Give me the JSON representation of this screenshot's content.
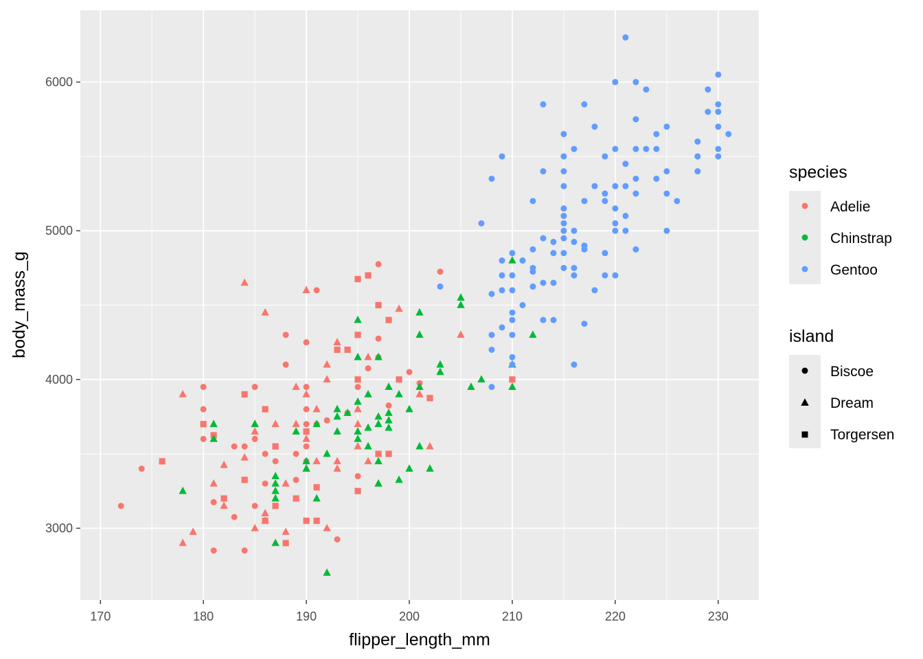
{
  "chart_data": {
    "type": "scatter",
    "xlabel": "flipper_length_mm",
    "ylabel": "body_mass_g",
    "xlim": [
      168.05,
      233.95
    ],
    "ylim": [
      2517.5,
      6482.5
    ],
    "x_ticks": [
      170,
      180,
      190,
      200,
      210,
      220,
      230
    ],
    "y_ticks": [
      3000,
      4000,
      5000,
      6000
    ],
    "grid": true,
    "panel_background": "#EBEBEB",
    "legends": [
      {
        "title": "species",
        "entries": [
          {
            "label": "Adelie",
            "color": "#F8766D"
          },
          {
            "label": "Chinstrap",
            "color": "#00BA38"
          },
          {
            "label": "Gentoo",
            "color": "#619CFF"
          }
        ]
      },
      {
        "title": "island",
        "entries": [
          {
            "label": "Biscoe",
            "shape": "circle"
          },
          {
            "label": "Dream",
            "shape": "triangle"
          },
          {
            "label": "Torgersen",
            "shape": "square"
          }
        ]
      }
    ],
    "series": [
      {
        "species": "Adelie",
        "island": "Biscoe",
        "points": [
          [
            172,
            3150
          ],
          [
            174,
            3400
          ],
          [
            180,
            3950
          ],
          [
            180,
            3800
          ],
          [
            180,
            3600
          ],
          [
            181,
            2850
          ],
          [
            181,
            3175
          ],
          [
            182,
            3200
          ],
          [
            183,
            3550
          ],
          [
            183,
            3075
          ],
          [
            184,
            3550
          ],
          [
            184,
            2850
          ],
          [
            185,
            3950
          ],
          [
            185,
            3600
          ],
          [
            185,
            3150
          ],
          [
            186,
            3500
          ],
          [
            186,
            3300
          ],
          [
            187,
            3450
          ],
          [
            188,
            4300
          ],
          [
            188,
            4100
          ],
          [
            189,
            3500
          ],
          [
            189,
            3325
          ],
          [
            190,
            4250
          ],
          [
            190,
            3950
          ],
          [
            190,
            3800
          ],
          [
            190,
            3700
          ],
          [
            190,
            3550
          ],
          [
            190,
            3450
          ],
          [
            191,
            4600
          ],
          [
            191,
            3700
          ],
          [
            192,
            3725
          ],
          [
            193,
            2925
          ],
          [
            194,
            3775
          ],
          [
            195,
            3950
          ],
          [
            195,
            3350
          ],
          [
            196,
            4075
          ],
          [
            197,
            4775
          ],
          [
            197,
            4275
          ],
          [
            197,
            4150
          ],
          [
            198,
            3825
          ],
          [
            200,
            4050
          ],
          [
            201,
            3975
          ],
          [
            203,
            4725
          ]
        ]
      },
      {
        "species": "Adelie",
        "island": "Dream",
        "points": [
          [
            178,
            3900
          ],
          [
            178,
            2900
          ],
          [
            179,
            2975
          ],
          [
            181,
            3300
          ],
          [
            182,
            3425
          ],
          [
            182,
            3150
          ],
          [
            184,
            4650
          ],
          [
            184,
            3475
          ],
          [
            185,
            3650
          ],
          [
            185,
            3700
          ],
          [
            185,
            3000
          ],
          [
            186,
            4450
          ],
          [
            186,
            3100
          ],
          [
            186,
            3050
          ],
          [
            187,
            3700
          ],
          [
            187,
            2900
          ],
          [
            188,
            3300
          ],
          [
            188,
            2975
          ],
          [
            189,
            3950
          ],
          [
            189,
            3700
          ],
          [
            190,
            4600
          ],
          [
            190,
            3900
          ],
          [
            190,
            3600
          ],
          [
            190,
            3400
          ],
          [
            191,
            3800
          ],
          [
            191,
            3450
          ],
          [
            192,
            4100
          ],
          [
            192,
            4000
          ],
          [
            192,
            3000
          ],
          [
            193,
            4250
          ],
          [
            193,
            3450
          ],
          [
            193,
            3400
          ],
          [
            195,
            3800
          ],
          [
            195,
            3700
          ],
          [
            195,
            3550
          ],
          [
            196,
            4150
          ],
          [
            196,
            3450
          ],
          [
            197,
            3300
          ],
          [
            199,
            4475
          ],
          [
            201,
            3900
          ],
          [
            202,
            3550
          ],
          [
            205,
            4300
          ]
        ]
      },
      {
        "species": "Adelie",
        "island": "Torgersen",
        "points": [
          [
            176,
            3450
          ],
          [
            180,
            3700
          ],
          [
            181,
            3625
          ],
          [
            182,
            3200
          ],
          [
            184,
            3900
          ],
          [
            184,
            3325
          ],
          [
            186,
            3800
          ],
          [
            186,
            3050
          ],
          [
            187,
            3550
          ],
          [
            187,
            3150
          ],
          [
            188,
            2900
          ],
          [
            189,
            3200
          ],
          [
            190,
            3650
          ],
          [
            190,
            3050
          ],
          [
            191,
            3275
          ],
          [
            191,
            3050
          ],
          [
            193,
            4200
          ],
          [
            194,
            4200
          ],
          [
            195,
            4675
          ],
          [
            195,
            4300
          ],
          [
            195,
            4000
          ],
          [
            195,
            3250
          ],
          [
            196,
            4700
          ],
          [
            197,
            4500
          ],
          [
            197,
            3500
          ],
          [
            198,
            4400
          ],
          [
            198,
            3500
          ],
          [
            199,
            4000
          ],
          [
            202,
            3875
          ],
          [
            210,
            4000
          ]
        ]
      },
      {
        "species": "Chinstrap",
        "island": "Dream",
        "points": [
          [
            178,
            3250
          ],
          [
            181,
            3700
          ],
          [
            181,
            3600
          ],
          [
            185,
            3700
          ],
          [
            187,
            3350
          ],
          [
            187,
            3300
          ],
          [
            187,
            3250
          ],
          [
            187,
            3200
          ],
          [
            187,
            2900
          ],
          [
            189,
            3650
          ],
          [
            190,
            3450
          ],
          [
            190,
            3400
          ],
          [
            191,
            3700
          ],
          [
            191,
            3200
          ],
          [
            192,
            3500
          ],
          [
            192,
            2700
          ],
          [
            193,
            3800
          ],
          [
            193,
            3650
          ],
          [
            193,
            3750
          ],
          [
            194,
            3775
          ],
          [
            195,
            4400
          ],
          [
            195,
            4150
          ],
          [
            195,
            3850
          ],
          [
            195,
            3650
          ],
          [
            195,
            3600
          ],
          [
            196,
            3900
          ],
          [
            196,
            3675
          ],
          [
            196,
            3550
          ],
          [
            197,
            4150
          ],
          [
            197,
            3750
          ],
          [
            197,
            3700
          ],
          [
            197,
            3450
          ],
          [
            197,
            3300
          ],
          [
            198,
            3950
          ],
          [
            198,
            3775
          ],
          [
            198,
            3725
          ],
          [
            198,
            3675
          ],
          [
            199,
            3900
          ],
          [
            199,
            3325
          ],
          [
            200,
            3800
          ],
          [
            200,
            3400
          ],
          [
            201,
            4450
          ],
          [
            201,
            4300
          ],
          [
            201,
            3950
          ],
          [
            201,
            3550
          ],
          [
            202,
            3400
          ],
          [
            203,
            4100
          ],
          [
            203,
            4050
          ],
          [
            205,
            4550
          ],
          [
            205,
            4500
          ],
          [
            206,
            3950
          ],
          [
            207,
            4000
          ],
          [
            210,
            4800
          ],
          [
            210,
            4100
          ],
          [
            210,
            3950
          ],
          [
            212,
            4300
          ]
        ]
      },
      {
        "species": "Gentoo",
        "island": "Biscoe",
        "points": [
          [
            203,
            4625
          ],
          [
            207,
            5050
          ],
          [
            208,
            5350
          ],
          [
            208,
            4575
          ],
          [
            208,
            4300
          ],
          [
            208,
            4200
          ],
          [
            208,
            3950
          ],
          [
            209,
            5500
          ],
          [
            209,
            4800
          ],
          [
            209,
            4700
          ],
          [
            209,
            4600
          ],
          [
            209,
            4350
          ],
          [
            210,
            4850
          ],
          [
            210,
            4700
          ],
          [
            210,
            4600
          ],
          [
            210,
            4450
          ],
          [
            210,
            4400
          ],
          [
            210,
            4300
          ],
          [
            210,
            4150
          ],
          [
            210,
            4100
          ],
          [
            211,
            4800
          ],
          [
            211,
            4500
          ],
          [
            212,
            5200
          ],
          [
            212,
            4875
          ],
          [
            212,
            4750
          ],
          [
            212,
            4725
          ],
          [
            212,
            4625
          ],
          [
            213,
            5850
          ],
          [
            213,
            5400
          ],
          [
            213,
            4950
          ],
          [
            213,
            4650
          ],
          [
            213,
            4400
          ],
          [
            214,
            4925
          ],
          [
            214,
            4850
          ],
          [
            214,
            4650
          ],
          [
            214,
            4400
          ],
          [
            215,
            5650
          ],
          [
            215,
            5500
          ],
          [
            215,
            5400
          ],
          [
            215,
            5300
          ],
          [
            215,
            5150
          ],
          [
            215,
            5100
          ],
          [
            215,
            5050
          ],
          [
            215,
            5000
          ],
          [
            215,
            4950
          ],
          [
            215,
            4850
          ],
          [
            215,
            4750
          ],
          [
            216,
            5550
          ],
          [
            216,
            5000
          ],
          [
            216,
            4925
          ],
          [
            216,
            4750
          ],
          [
            216,
            4700
          ],
          [
            216,
            4100
          ],
          [
            217,
            5850
          ],
          [
            217,
            5200
          ],
          [
            217,
            4900
          ],
          [
            217,
            4875
          ],
          [
            217,
            4375
          ],
          [
            218,
            5700
          ],
          [
            218,
            5300
          ],
          [
            218,
            4600
          ],
          [
            219,
            5500
          ],
          [
            219,
            5250
          ],
          [
            219,
            5200
          ],
          [
            219,
            4850
          ],
          [
            219,
            4700
          ],
          [
            220,
            6000
          ],
          [
            220,
            5550
          ],
          [
            220,
            5300
          ],
          [
            220,
            5150
          ],
          [
            220,
            5050
          ],
          [
            220,
            5000
          ],
          [
            220,
            4700
          ],
          [
            221,
            6300
          ],
          [
            221,
            5450
          ],
          [
            221,
            5300
          ],
          [
            221,
            5100
          ],
          [
            221,
            5000
          ],
          [
            222,
            6000
          ],
          [
            222,
            5750
          ],
          [
            222,
            5550
          ],
          [
            222,
            5350
          ],
          [
            222,
            5250
          ],
          [
            222,
            4875
          ],
          [
            223,
            5950
          ],
          [
            223,
            5550
          ],
          [
            224,
            5650
          ],
          [
            224,
            5550
          ],
          [
            224,
            5350
          ],
          [
            225,
            5700
          ],
          [
            225,
            5400
          ],
          [
            225,
            5250
          ],
          [
            225,
            5000
          ],
          [
            226,
            5200
          ],
          [
            228,
            5600
          ],
          [
            228,
            5500
          ],
          [
            228,
            5400
          ],
          [
            229,
            5950
          ],
          [
            229,
            5800
          ],
          [
            230,
            6050
          ],
          [
            230,
            5850
          ],
          [
            230,
            5800
          ],
          [
            230,
            5700
          ],
          [
            230,
            5550
          ],
          [
            230,
            5500
          ],
          [
            231,
            5650
          ]
        ]
      }
    ]
  }
}
